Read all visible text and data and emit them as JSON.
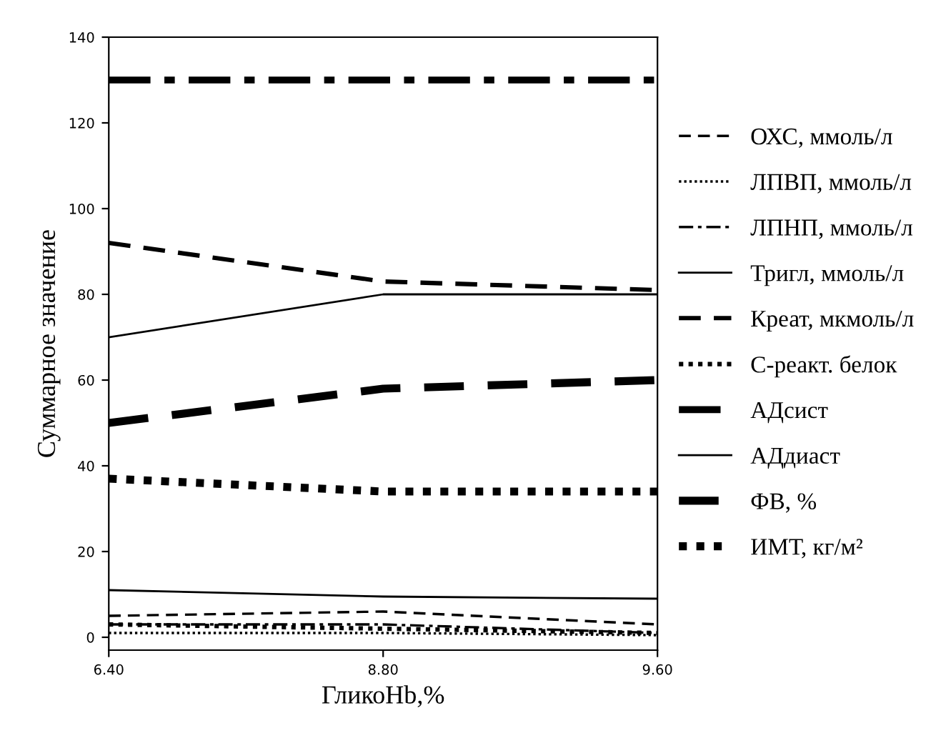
{
  "chart_data": {
    "type": "line",
    "xlabel": "ГликоHb,%",
    "ylabel": "Суммарное значение",
    "categories": [
      "6.40",
      "8.80",
      "9.60"
    ],
    "ylim": [
      -3,
      140
    ],
    "yticks": [
      0,
      20,
      40,
      60,
      80,
      100,
      120,
      140
    ],
    "grid": false,
    "legend": "right",
    "marker": "none",
    "series": [
      {
        "name": "ОХС, ммоль/л",
        "color": "#000000",
        "line_style": "dashed",
        "values": [
          5,
          6,
          3
        ]
      },
      {
        "name": "ЛПВП, ммоль/л",
        "color": "#000000",
        "line_style": "dotted",
        "values": [
          1,
          1,
          0.5
        ]
      },
      {
        "name": "ЛПНП, ммоль/л",
        "color": "#000000",
        "line_style": "dashdot",
        "values": [
          3,
          3,
          1
        ]
      },
      {
        "name": "Тригл, ммоль/л",
        "color": "#000000",
        "line_style": "solid",
        "values": [
          11,
          9.5,
          9
        ]
      },
      {
        "name": "Креат, мкмоль/л",
        "color": "#000000",
        "line_style": "dashed",
        "values": [
          92,
          83,
          81
        ]
      },
      {
        "name": "С-реакт. белок",
        "color": "#000000",
        "line_style": "dotted",
        "values": [
          3,
          2,
          1
        ]
      },
      {
        "name": "АДсист",
        "color": "#000000",
        "line_style": "dashdot",
        "values": [
          130,
          130,
          130
        ]
      },
      {
        "name": "АДдиаст",
        "color": "#000000",
        "line_style": "solid",
        "values": [
          70,
          80,
          80
        ]
      },
      {
        "name": "ФВ, %",
        "color": "#000000",
        "line_style": "dashed",
        "values": [
          50,
          58,
          60
        ]
      },
      {
        "name": "ИМТ, кг/м²",
        "color": "#000000",
        "line_style": "dotted",
        "values": [
          37,
          34,
          34
        ]
      }
    ]
  }
}
